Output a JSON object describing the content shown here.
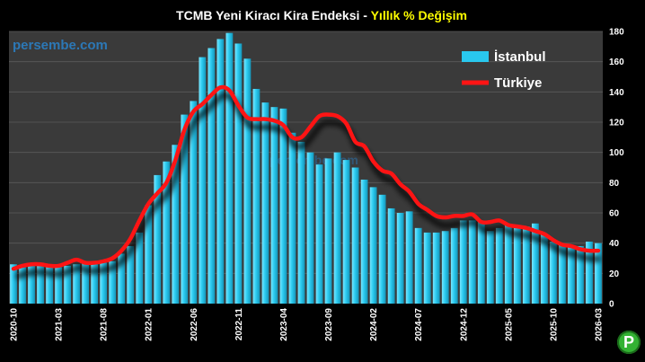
{
  "chart_data": {
    "type": "bar",
    "title_main": "TCMB Yeni Kiracı Kira Endeksi - ",
    "title_accent": "Yıllık % Değişim",
    "watermark": "persembe.com",
    "ylim": [
      0,
      180
    ],
    "yticks": [
      0,
      20,
      40,
      60,
      80,
      100,
      120,
      140,
      160,
      180
    ],
    "x": [
      "2020-10",
      "2020-11",
      "2020-12",
      "2021-01",
      "2021-02",
      "2021-03",
      "2021-04",
      "2021-05",
      "2021-06",
      "2021-07",
      "2021-08",
      "2021-09",
      "2021-10",
      "2021-11",
      "2021-12",
      "2022-01",
      "2022-02",
      "2022-03",
      "2022-04",
      "2022-05",
      "2022-06",
      "2022-07",
      "2022-08",
      "2022-09",
      "2022-10",
      "2022-11",
      "2022-12",
      "2023-01",
      "2023-02",
      "2023-03",
      "2023-04",
      "2023-05",
      "2023-06",
      "2023-07",
      "2023-08",
      "2023-09",
      "2023-10",
      "2023-11",
      "2023-12",
      "2024-01",
      "2024-02",
      "2024-03",
      "2024-04",
      "2024-05",
      "2024-06",
      "2024-07",
      "2024-08",
      "2024-09",
      "2024-10",
      "2024-11",
      "2024-12",
      "2025-01",
      "2025-02",
      "2025-03",
      "2025-04",
      "2025-05",
      "2025-06",
      "2025-07",
      "2025-08",
      "2025-09",
      "2025-10",
      "2025-11",
      "2025-12",
      "2026-01",
      "2026-02",
      "2026-03"
    ],
    "xtick_labels": [
      "2020-10",
      "2021-03",
      "2021-08",
      "2022-01",
      "2022-06",
      "2022-11",
      "2023-04",
      "2023-09",
      "2024-02",
      "2024-07",
      "2024-12",
      "2025-05",
      "2025-10",
      "2026-03"
    ],
    "grid": true,
    "legend_position": "top-right",
    "series": [
      {
        "name": "İstanbul",
        "type": "bar",
        "color": "#29c8ee",
        "values": [
          26,
          24,
          25,
          26,
          25,
          24,
          25,
          26,
          27,
          26,
          27,
          28,
          33,
          38,
          47,
          65,
          85,
          94,
          105,
          125,
          134,
          163,
          169,
          175,
          179,
          172,
          162,
          142,
          133,
          130,
          129,
          113,
          107,
          100,
          92,
          96,
          100,
          95,
          90,
          82,
          77,
          72,
          63,
          60,
          61,
          50,
          47,
          47,
          48,
          50,
          55,
          55,
          54,
          48,
          50,
          52,
          51,
          51,
          53,
          46,
          41,
          39,
          38,
          38,
          41,
          40
        ]
      },
      {
        "name": "Türkiye",
        "type": "line",
        "color": "#ff1414",
        "values": [
          23,
          25,
          26,
          26,
          25,
          25,
          27,
          29,
          27,
          27,
          28,
          30,
          35,
          43,
          55,
          66,
          73,
          80,
          95,
          115,
          127,
          132,
          138,
          143,
          141,
          131,
          123,
          122,
          122,
          121,
          118,
          110,
          110,
          117,
          124,
          125,
          124,
          119,
          107,
          104,
          94,
          88,
          86,
          79,
          74,
          66,
          62,
          58,
          57,
          58,
          58,
          59,
          54,
          54,
          55,
          52,
          51,
          50,
          48,
          46,
          42,
          39,
          38,
          36,
          35,
          35
        ]
      }
    ]
  }
}
